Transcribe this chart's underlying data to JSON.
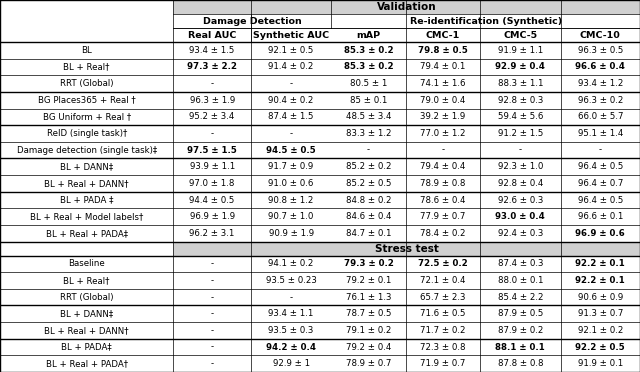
{
  "section_validation": "Validation",
  "section_stress": "Stress test",
  "rows_validation": [
    [
      "BL",
      "93.4 ± 1.5",
      "92.1 ± 0.5",
      "**85.3 ± 0.2**",
      "**79.8 ± 0.5**",
      "91.9 ± 1.1",
      "96.3 ± 0.5"
    ],
    [
      "BL + Real†",
      "**97.3 ± 2.2**",
      "91.4 ± 0.2",
      "**85.3 ± 0.2**",
      "79.4 ± 0.1",
      "**92.9 ± 0.4**",
      "**96.6 ± 0.4**"
    ],
    [
      "RRT (Global)",
      "-",
      "-",
      "80.5 ± 1",
      "74.1 ± 1.6",
      "88.3 ± 1.1",
      "93.4 ± 1.2"
    ],
    [
      "BG Places365 + Real †",
      "96.3 ± 1.9",
      "90.4 ± 0.2",
      "85 ± 0.1",
      "79.0 ± 0.4",
      "92.8 ± 0.3",
      "96.3 ± 0.2"
    ],
    [
      "BG Uniform + Real †",
      "95.2 ± 3.4",
      "87.4 ± 1.5",
      "48.5 ± 3.4",
      "39.2 ± 1.9",
      "59.4 ± 5.6",
      "66.0 ± 5.7"
    ],
    [
      "ReID (single task)†",
      "-",
      "-",
      "83.3 ± 1.2",
      "77.0 ± 1.2",
      "91.2 ± 1.5",
      "95.1 ± 1.4"
    ],
    [
      "Damage detection (single task)‡",
      "**97.5 ± 1.5**",
      "**94.5 ± 0.5**",
      "-",
      "-",
      "-",
      "-"
    ],
    [
      "BL + DANN‡",
      "93.9 ± 1.1",
      "91.7 ± 0.9",
      "85.2 ± 0.2",
      "79.4 ± 0.4",
      "92.3 ± 1.0",
      "96.4 ± 0.5"
    ],
    [
      "BL + Real + DANN†",
      "97.0 ± 1.8",
      "91.0 ± 0.6",
      "85.2 ± 0.5",
      "78.9 ± 0.8",
      "92.8 ± 0.4",
      "96.4 ± 0.7"
    ],
    [
      "BL + PADA ‡",
      "94.4 ± 0.5",
      "90.8 ± 1.2",
      "84.8 ± 0.2",
      "78.6 ± 0.4",
      "92.6 ± 0.3",
      "96.4 ± 0.5"
    ],
    [
      "BL + Real + Model labels†",
      "96.9 ± 1.9",
      "90.7 ± 1.0",
      "84.6 ± 0.4",
      "77.9 ± 0.7",
      "**93.0 ± 0.4**",
      "96.6 ± 0.1"
    ],
    [
      "BL + Real + PADA‡",
      "96.2 ± 3.1",
      "90.9 ± 1.9",
      "84.7 ± 0.1",
      "78.4 ± 0.2",
      "92.4 ± 0.3",
      "**96.9 ± 0.6**"
    ]
  ],
  "rows_stress": [
    [
      "Baseline",
      "-",
      "94.1 ± 0.2",
      "**79.3 ± 0.2**",
      "**72.5 ± 0.2**",
      "87.4 ± 0.3",
      "**92.2 ± 0.1**"
    ],
    [
      "BL + Real†",
      "-",
      "93.5 ± 0.23",
      "79.2 ± 0.1",
      "72.1 ± 0.4",
      "88.0 ± 0.1",
      "**92.2 ± 0.1**"
    ],
    [
      "RRT (Global)",
      "-",
      "-",
      "76.1 ± 1.3",
      "65.7 ± 2.3",
      "85.4 ± 2.2",
      "90.6 ± 0.9"
    ],
    [
      "BL + DANN‡",
      "-",
      "93.4 ± 1.1",
      "78.7 ± 0.5",
      "71.6 ± 0.5",
      "87.9 ± 0.5",
      "91.3 ± 0.7"
    ],
    [
      "BL + Real + DANN†",
      "-",
      "93.5 ± 0.3",
      "79.1 ± 0.2",
      "71.7 ± 0.2",
      "87.9 ± 0.2",
      "92.1 ± 0.2"
    ],
    [
      "BL + PADA‡",
      "-",
      "**94.2 ± 0.4**",
      "79.2 ± 0.4",
      "72.3 ± 0.8",
      "**88.1 ± 0.1**",
      "**92.2 ± 0.5**"
    ],
    [
      "BL + Real + PADA†",
      "-",
      "92.9 ± 1",
      "78.9 ± 0.7",
      "71.9 ± 0.7",
      "87.8 ± 0.8",
      "91.9 ± 0.1"
    ]
  ],
  "group_separators_validation": [
    3,
    5,
    7,
    9
  ],
  "group_separators_stress": [
    3,
    5
  ],
  "col_names": [
    "",
    "Real AUC",
    "Synthetic AUC",
    "mAP",
    "CMC-1",
    "CMC-5",
    "CMC-10"
  ]
}
